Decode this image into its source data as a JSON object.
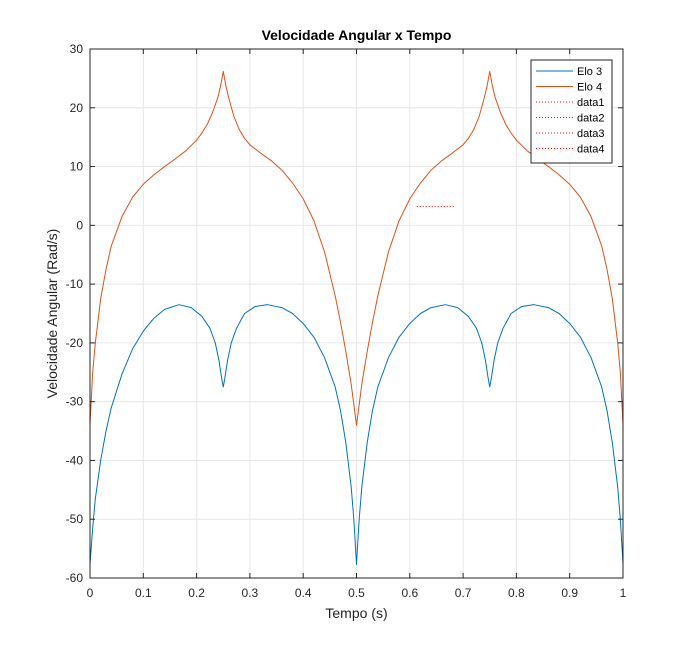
{
  "chart_data": {
    "type": "line",
    "title": "Velocidade Angular x Tempo",
    "xlabel": "Tempo (s)",
    "ylabel": "Velocidade Angular (Rad/s)",
    "xlim": [
      0,
      1
    ],
    "ylim": [
      -60,
      30
    ],
    "xticks": [
      "0",
      "0.1",
      "0.2",
      "0.3",
      "0.4",
      "0.5",
      "0.6",
      "0.7",
      "0.8",
      "0.9",
      "1"
    ],
    "yticks": [
      "-60",
      "-50",
      "-40",
      "-30",
      "-20",
      "-10",
      "0",
      "10",
      "20",
      "30"
    ],
    "grid": true,
    "legend_position": "top-right",
    "series": [
      {
        "name": "Elo 3",
        "color": "#0072BD",
        "style": "solid",
        "x": [
          0,
          0.005,
          0.01,
          0.02,
          0.03,
          0.04,
          0.06,
          0.08,
          0.1,
          0.12,
          0.14,
          0.167,
          0.19,
          0.21,
          0.225,
          0.235,
          0.242,
          0.247,
          0.25,
          0.253,
          0.258,
          0.265,
          0.275,
          0.29,
          0.31,
          0.333,
          0.36,
          0.38,
          0.4,
          0.42,
          0.44,
          0.46,
          0.47,
          0.48,
          0.49,
          0.495,
          0.5,
          0.505,
          0.51,
          0.52,
          0.53,
          0.54,
          0.56,
          0.58,
          0.6,
          0.62,
          0.64,
          0.667,
          0.69,
          0.71,
          0.725,
          0.735,
          0.742,
          0.747,
          0.75,
          0.753,
          0.758,
          0.765,
          0.775,
          0.79,
          0.81,
          0.833,
          0.86,
          0.88,
          0.9,
          0.92,
          0.94,
          0.96,
          0.97,
          0.98,
          0.99,
          0.995,
          1.0
        ],
        "y": [
          -57.7,
          -51.5,
          -46.5,
          -40.0,
          -35.0,
          -31.0,
          -25.3,
          -21.0,
          -18.0,
          -15.8,
          -14.3,
          -13.5,
          -14.0,
          -15.5,
          -17.5,
          -20.0,
          -23.0,
          -26.0,
          -27.5,
          -26.0,
          -23.0,
          -20.0,
          -17.5,
          -15.0,
          -13.8,
          -13.5,
          -14.0,
          -15.0,
          -16.7,
          -19.0,
          -22.5,
          -27.5,
          -31.5,
          -37.0,
          -44.5,
          -50.0,
          -57.7,
          -50.0,
          -44.5,
          -37.0,
          -31.5,
          -27.5,
          -22.5,
          -19.0,
          -16.7,
          -15.0,
          -14.0,
          -13.5,
          -14.0,
          -15.5,
          -17.5,
          -20.0,
          -23.0,
          -26.0,
          -27.5,
          -26.0,
          -23.0,
          -20.0,
          -17.5,
          -15.0,
          -13.8,
          -13.5,
          -14.0,
          -15.0,
          -16.7,
          -19.0,
          -22.5,
          -27.5,
          -31.5,
          -37.0,
          -44.5,
          -50.0,
          -57.7
        ]
      },
      {
        "name": "Elo 4",
        "color": "#D95319",
        "style": "solid",
        "x": [
          0,
          0.005,
          0.01,
          0.02,
          0.03,
          0.04,
          0.06,
          0.08,
          0.1,
          0.12,
          0.14,
          0.16,
          0.18,
          0.2,
          0.21,
          0.22,
          0.23,
          0.24,
          0.245,
          0.25,
          0.255,
          0.26,
          0.27,
          0.28,
          0.29,
          0.3,
          0.32,
          0.34,
          0.36,
          0.38,
          0.4,
          0.42,
          0.44,
          0.46,
          0.47,
          0.48,
          0.49,
          0.495,
          0.5,
          0.505,
          0.51,
          0.52,
          0.53,
          0.54,
          0.56,
          0.58,
          0.6,
          0.62,
          0.64,
          0.66,
          0.68,
          0.7,
          0.71,
          0.72,
          0.73,
          0.74,
          0.745,
          0.75,
          0.755,
          0.76,
          0.77,
          0.78,
          0.79,
          0.8,
          0.82,
          0.84,
          0.86,
          0.88,
          0.9,
          0.92,
          0.94,
          0.96,
          0.97,
          0.98,
          0.99,
          0.995,
          1.0
        ],
        "y": [
          -34.0,
          -25.0,
          -20.0,
          -12.5,
          -7.5,
          -3.5,
          1.5,
          4.8,
          7.0,
          8.6,
          10.0,
          11.3,
          12.7,
          14.5,
          15.7,
          17.2,
          19.2,
          21.8,
          23.7,
          26.2,
          23.7,
          21.8,
          18.5,
          16.3,
          14.8,
          13.7,
          12.3,
          11.0,
          9.4,
          7.2,
          4.5,
          0.8,
          -4.5,
          -12.0,
          -16.5,
          -21.5,
          -27.0,
          -30.5,
          -34.0,
          -30.5,
          -27.0,
          -21.5,
          -16.5,
          -12.0,
          -4.5,
          0.8,
          4.5,
          7.2,
          9.4,
          11.0,
          12.3,
          13.7,
          14.8,
          16.3,
          18.5,
          21.8,
          23.7,
          26.2,
          23.7,
          21.8,
          19.2,
          17.2,
          15.7,
          14.5,
          12.7,
          11.3,
          10.0,
          8.6,
          7.0,
          4.8,
          1.5,
          -3.5,
          -7.5,
          -12.5,
          -20.0,
          -25.0,
          -34.0
        ]
      },
      {
        "name": "data1",
        "color": "#FF0000",
        "style": "dotted",
        "x": [
          0.613,
          0.685
        ],
        "y": [
          3.2,
          3.2
        ]
      },
      {
        "name": "data2",
        "color": "#FF0000",
        "style": "dotted",
        "x": [],
        "y": []
      },
      {
        "name": "data3",
        "color": "#FF0000",
        "style": "dotted",
        "x": [],
        "y": []
      },
      {
        "name": "data4",
        "color": "#FF0000",
        "style": "dotted",
        "x": [],
        "y": []
      }
    ]
  }
}
